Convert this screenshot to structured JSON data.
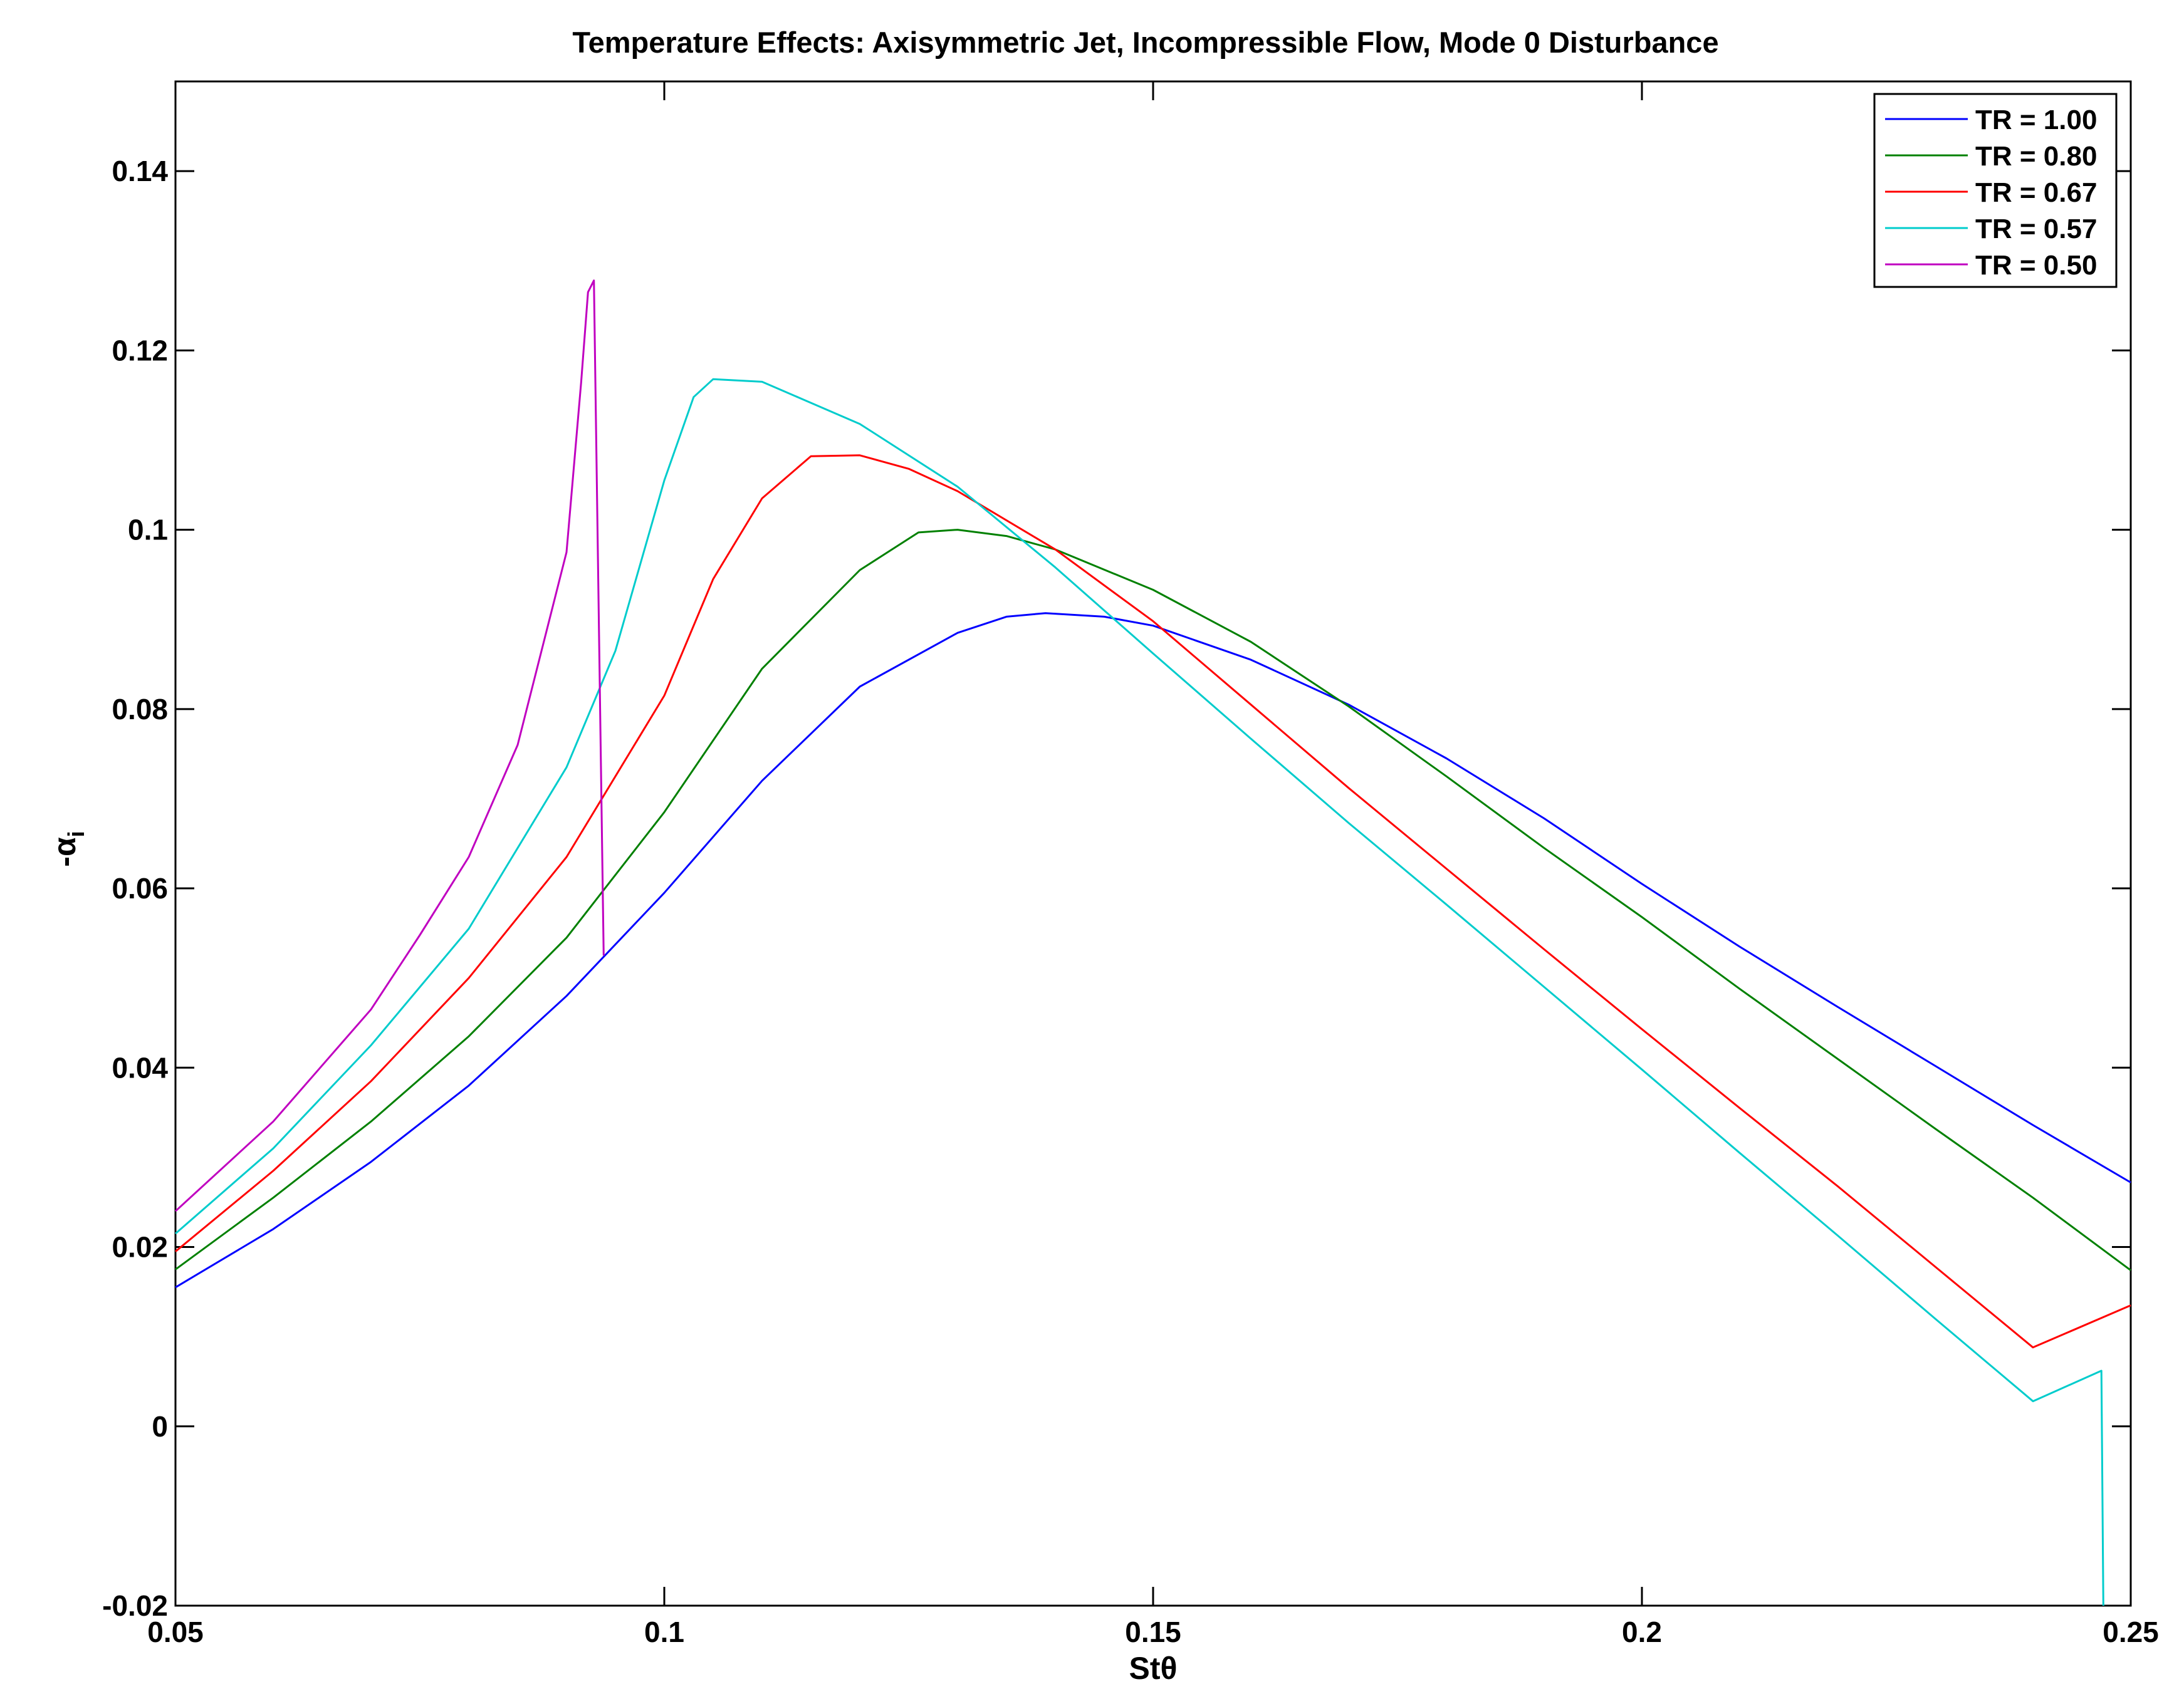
{
  "chart_data": {
    "type": "line",
    "title": "Temperature Effects: Axisymmetric Jet, Incompressible Flow, Mode 0 Disturbance",
    "xlabel": "Stθ",
    "ylabel": "-α",
    "ylabel_subscript": "i",
    "xlim": [
      0.05,
      0.25
    ],
    "ylim": [
      -0.02,
      0.15
    ],
    "xticks": [
      0.05,
      0.1,
      0.15,
      0.2,
      0.25
    ],
    "xtick_labels": [
      "0.05",
      "0.1",
      "0.15",
      "0.2",
      "0.25"
    ],
    "yticks": [
      -0.02,
      0,
      0.02,
      0.04,
      0.06,
      0.08,
      0.1,
      0.12,
      0.14
    ],
    "ytick_labels": [
      "-0.02",
      "0",
      "0.02",
      "0.04",
      "0.06",
      "0.08",
      "0.1",
      "0.12",
      "0.14"
    ],
    "grid": false,
    "legend_position": "top-right",
    "series": [
      {
        "name": "TR = 1.00",
        "color": "#0000ff",
        "points": [
          [
            0.05,
            0.0155
          ],
          [
            0.06,
            0.022
          ],
          [
            0.07,
            0.0295
          ],
          [
            0.08,
            0.038
          ],
          [
            0.09,
            0.048
          ],
          [
            0.1,
            0.0595
          ],
          [
            0.11,
            0.072
          ],
          [
            0.12,
            0.0825
          ],
          [
            0.13,
            0.0885
          ],
          [
            0.135,
            0.0903
          ],
          [
            0.139,
            0.0907
          ],
          [
            0.145,
            0.0903
          ],
          [
            0.15,
            0.0893
          ],
          [
            0.16,
            0.0855
          ],
          [
            0.17,
            0.0805
          ],
          [
            0.18,
            0.0745
          ],
          [
            0.19,
            0.0678
          ],
          [
            0.2,
            0.0605
          ],
          [
            0.21,
            0.0535
          ],
          [
            0.22,
            0.0468
          ],
          [
            0.23,
            0.0402
          ],
          [
            0.24,
            0.0336
          ],
          [
            0.25,
            0.0272
          ]
        ]
      },
      {
        "name": "TR = 0.80",
        "color": "#008000",
        "points": [
          [
            0.05,
            0.0175
          ],
          [
            0.06,
            0.0255
          ],
          [
            0.07,
            0.034
          ],
          [
            0.08,
            0.0435
          ],
          [
            0.09,
            0.0545
          ],
          [
            0.1,
            0.0685
          ],
          [
            0.11,
            0.0845
          ],
          [
            0.12,
            0.0955
          ],
          [
            0.126,
            0.0997
          ],
          [
            0.13,
            0.1
          ],
          [
            0.135,
            0.0993
          ],
          [
            0.14,
            0.0978
          ],
          [
            0.15,
            0.0933
          ],
          [
            0.16,
            0.0875
          ],
          [
            0.17,
            0.0803
          ],
          [
            0.18,
            0.0725
          ],
          [
            0.19,
            0.0645
          ],
          [
            0.2,
            0.0568
          ],
          [
            0.21,
            0.0488
          ],
          [
            0.22,
            0.041
          ],
          [
            0.23,
            0.0332
          ],
          [
            0.24,
            0.0255
          ],
          [
            0.25,
            0.0174
          ]
        ]
      },
      {
        "name": "TR = 0.67",
        "color": "#ff0000",
        "points": [
          [
            0.05,
            0.0195
          ],
          [
            0.06,
            0.0285
          ],
          [
            0.07,
            0.0385
          ],
          [
            0.08,
            0.05
          ],
          [
            0.09,
            0.0635
          ],
          [
            0.1,
            0.0815
          ],
          [
            0.105,
            0.0945
          ],
          [
            0.11,
            0.1035
          ],
          [
            0.115,
            0.1082
          ],
          [
            0.12,
            0.1083
          ],
          [
            0.125,
            0.1068
          ],
          [
            0.13,
            0.1043
          ],
          [
            0.14,
            0.0978
          ],
          [
            0.15,
            0.0898
          ],
          [
            0.16,
            0.0805
          ],
          [
            0.17,
            0.0712
          ],
          [
            0.18,
            0.0622
          ],
          [
            0.19,
            0.0532
          ],
          [
            0.2,
            0.0443
          ],
          [
            0.21,
            0.0355
          ],
          [
            0.22,
            0.0268
          ],
          [
            0.23,
            0.0178
          ],
          [
            0.24,
            0.0088
          ],
          [
            0.25,
            0.0135
          ]
        ]
      },
      {
        "name": "TR = 0.57",
        "color": "#00cccc",
        "points": [
          [
            0.05,
            0.0215
          ],
          [
            0.06,
            0.031
          ],
          [
            0.07,
            0.0425
          ],
          [
            0.08,
            0.0555
          ],
          [
            0.09,
            0.0735
          ],
          [
            0.095,
            0.0865
          ],
          [
            0.1,
            0.1055
          ],
          [
            0.103,
            0.1148
          ],
          [
            0.105,
            0.1168
          ],
          [
            0.11,
            0.1165
          ],
          [
            0.12,
            0.1118
          ],
          [
            0.13,
            0.1048
          ],
          [
            0.14,
            0.0958
          ],
          [
            0.15,
            0.0862
          ],
          [
            0.16,
            0.0767
          ],
          [
            0.17,
            0.0673
          ],
          [
            0.18,
            0.0582
          ],
          [
            0.19,
            0.049
          ],
          [
            0.2,
            0.0398
          ],
          [
            0.21,
            0.0305
          ],
          [
            0.22,
            0.0213
          ],
          [
            0.23,
            0.012
          ],
          [
            0.24,
            0.0028
          ],
          [
            0.247,
            0.0062
          ],
          [
            0.2472,
            -0.02
          ]
        ]
      },
      {
        "name": "TR = 0.50",
        "color": "#c000c0",
        "points": [
          [
            0.05,
            0.024
          ],
          [
            0.06,
            0.034
          ],
          [
            0.07,
            0.0465
          ],
          [
            0.075,
            0.0548
          ],
          [
            0.08,
            0.0635
          ],
          [
            0.085,
            0.076
          ],
          [
            0.09,
            0.0975
          ],
          [
            0.0915,
            0.1165
          ],
          [
            0.0922,
            0.1265
          ],
          [
            0.0928,
            0.1278
          ],
          [
            0.0938,
            0.0525
          ]
        ]
      }
    ]
  }
}
